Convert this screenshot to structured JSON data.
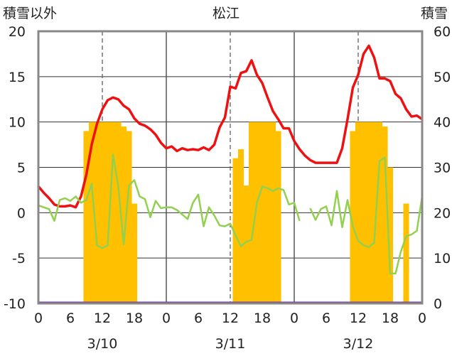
{
  "chart_data": {
    "type": "line",
    "title": "松江",
    "ylabel_left": "積雪以外",
    "ylabel_right": "積雪",
    "ylim_left": [
      -10,
      20
    ],
    "ylim_right": [
      0,
      60
    ],
    "yticks_left": [
      "20",
      "15",
      "10",
      "5",
      "0",
      "-5",
      "-10"
    ],
    "yticks_right": [
      "60",
      "50",
      "40",
      "30",
      "20",
      "10",
      "0"
    ],
    "xticks": [
      "0",
      "6",
      "12",
      "18",
      "0",
      "6",
      "12",
      "18",
      "0",
      "6",
      "12",
      "18",
      "0"
    ],
    "days": [
      "3/10",
      "3/11",
      "3/12"
    ],
    "colors": {
      "red": "#ee1111",
      "green": "#92d050",
      "orange": "#ffc000",
      "purple": "#7030a0",
      "grid": "#555555"
    },
    "series": [
      {
        "key": "red",
        "axis": "left",
        "values": [
          2.9,
          2.2,
          1.6,
          0.9,
          0.7,
          0.7,
          0.8,
          0.6,
          1.8,
          4.2,
          7.5,
          9.8,
          11.4,
          12.4,
          12.7,
          12.5,
          11.8,
          11.4,
          10.4,
          9.8,
          9.6,
          9.2,
          8.6,
          7.7,
          7.1,
          7.3,
          6.8,
          7.1,
          6.9,
          7.0,
          6.9,
          7.2,
          6.9,
          7.5,
          9.4,
          10.5,
          13.9,
          13.7,
          15.4,
          15.6,
          16.8,
          15.2,
          14.3,
          12.7,
          11.2,
          10.3,
          9.3,
          9.3,
          7.9,
          7.0,
          6.3,
          5.8,
          5.5,
          5.5,
          5.5,
          5.5,
          5.5,
          7.1,
          10.3,
          13.8,
          15.2,
          17.5,
          18.4,
          17.1,
          14.8,
          14.8,
          14.5,
          13.1,
          12.6,
          11.4,
          10.6,
          10.7,
          10.3
        ]
      },
      {
        "key": "green",
        "axis": "left",
        "values": [
          0.8,
          0.6,
          0.4,
          -0.9,
          1.4,
          1.6,
          1.3,
          1.8,
          1.1,
          1.4,
          3.2,
          -3.6,
          -3.9,
          -3.6,
          6.4,
          2.9,
          -3.5,
          3.0,
          3.6,
          1.8,
          1.5,
          -0.5,
          1.3,
          0.5,
          0.6,
          0.6,
          0.3,
          -0.2,
          -0.7,
          1.1,
          2.0,
          -1.5,
          0.6,
          -0.3,
          -1.4,
          -1.5,
          -1.2,
          -2.5,
          -3.7,
          -3.2,
          -3.0,
          1.1,
          2.9,
          2.7,
          2.4,
          2.7,
          2.5,
          0.9,
          1.1,
          -0.9,
          null,
          0.5,
          -0.8,
          0.4,
          0.7,
          -1.4,
          2.4,
          -1.6,
          1.4,
          -1.5,
          -3.1,
          -3.6,
          -3.8,
          -3.3,
          5.7,
          6.1,
          -6.7,
          -6.7,
          -4.3,
          -2.6,
          -2.4,
          -2.0,
          1.8
        ]
      }
    ],
    "bars": {
      "axis": "right",
      "values": [
        0,
        0,
        0,
        0,
        0,
        0,
        0,
        0,
        0,
        38,
        40,
        40,
        40,
        40,
        40,
        40,
        39,
        38,
        22,
        0,
        0,
        0,
        0,
        0,
        0,
        0,
        0,
        0,
        0,
        0,
        0,
        0,
        0,
        0,
        0,
        0,
        0,
        32,
        34,
        26,
        40,
        40,
        40,
        40,
        40,
        38,
        0,
        0,
        0,
        0,
        0,
        0,
        0,
        0,
        0,
        0,
        0,
        0,
        0,
        38,
        40,
        40,
        40,
        40,
        40,
        39,
        30,
        0,
        0,
        22,
        0,
        0,
        0
      ]
    },
    "baseline_series": {
      "key": "purple",
      "axis": "left",
      "value": -10
    }
  }
}
